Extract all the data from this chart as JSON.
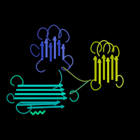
{
  "background_color": "#000000",
  "figsize": [
    2.0,
    2.0
  ],
  "dpi": 100,
  "colors": {
    "blue_purple": "#4444aa",
    "cyan_teal": "#00ccaa",
    "yellow_green": "#aacc00",
    "dark_blue": "#2233bb",
    "light_green": "#ccdd44",
    "teal": "#00aa99"
  }
}
